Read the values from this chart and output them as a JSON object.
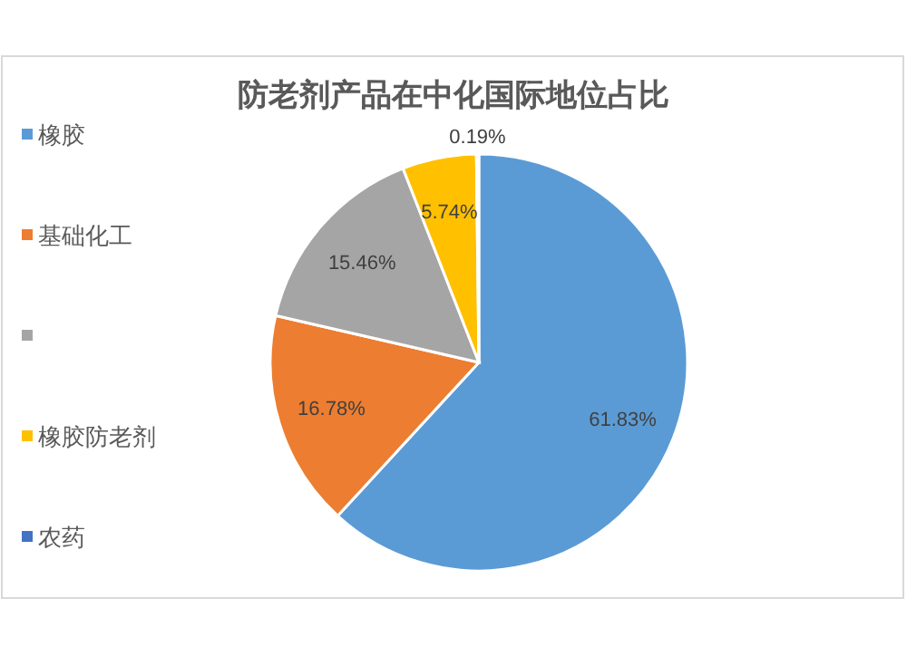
{
  "chart_data": {
    "type": "pie",
    "title": "防老剂产品在中化国际地位占比",
    "categories": [
      "橡胶",
      "基础化工",
      null,
      "橡胶防老剂",
      "农药"
    ],
    "values": [
      61.83,
      16.78,
      15.46,
      5.74,
      0.19
    ],
    "value_labels": [
      "61.83%",
      "16.78%",
      "15.46%",
      "5.74%",
      "0.19%"
    ],
    "colors": [
      "#5b9bd5",
      "#ed7d31",
      "#a5a5a5",
      "#ffc000",
      "#4472c4"
    ],
    "legend": "left"
  }
}
